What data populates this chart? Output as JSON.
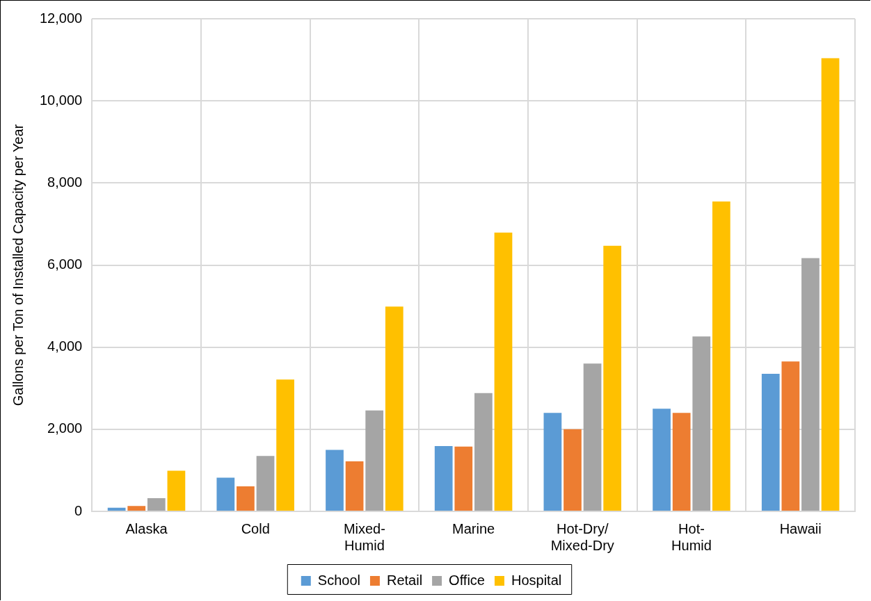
{
  "chart_data": {
    "type": "bar",
    "ylabel": "Gallons per Ton of Installed Capacity per Year",
    "categories": [
      "Alaska",
      "Cold",
      "Mixed-Humid",
      "Marine",
      "Hot-Dry/Mixed-Dry",
      "Hot-Humid",
      "Hawaii"
    ],
    "series": [
      {
        "name": "School",
        "color": "#5b9bd5",
        "values": [
          90,
          820,
          1500,
          1590,
          2400,
          2500,
          3350
        ]
      },
      {
        "name": "Retail",
        "color": "#ed7d31",
        "values": [
          130,
          610,
          1220,
          1580,
          2000,
          2400,
          3650
        ]
      },
      {
        "name": "Office",
        "color": "#a5a5a5",
        "values": [
          320,
          1350,
          2460,
          2880,
          3600,
          4260,
          6170
        ]
      },
      {
        "name": "Hospital",
        "color": "#ffc000",
        "values": [
          990,
          3210,
          4990,
          6790,
          6470,
          7550,
          11040
        ]
      }
    ],
    "ylim": [
      0,
      12000
    ],
    "yticks": [
      0,
      {
        "value": 2000,
        "label": "2,000"
      },
      {
        "value": 4000,
        "label": "4,000"
      },
      {
        "value": 6000,
        "label": "6,000"
      },
      {
        "value": 8000,
        "label": "8,000"
      },
      {
        "value": 10000,
        "label": "10,000"
      },
      {
        "value": 12000,
        "label": "12,000"
      }
    ],
    "grid": true,
    "legend": "bottom"
  }
}
